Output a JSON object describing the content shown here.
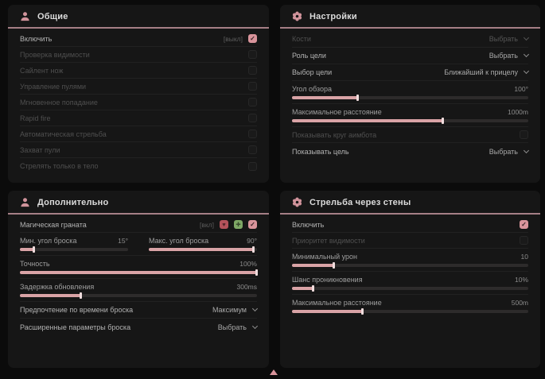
{
  "colors": {
    "accent": "#d9949b",
    "panel_bg": "#161616",
    "page_bg": "#0b0b0b",
    "header_line": "#a57f86",
    "slider_fill": "#d9a3a6"
  },
  "icons": {
    "check": "✓",
    "heart": "♥",
    "cross": "✚"
  },
  "general": {
    "title": "Общие",
    "rows": [
      {
        "label": "Включить",
        "tag": "[выкл]",
        "checked": true
      },
      {
        "label": "Проверка видимости"
      },
      {
        "label": "Сайлент нож"
      },
      {
        "label": "Управление пулями"
      },
      {
        "label": "Мгновенное попадание"
      },
      {
        "label": "Rapid fire"
      },
      {
        "label": "Автоматическая стрельба"
      },
      {
        "label": "Захват пули"
      },
      {
        "label": "Стрелять только в тело"
      }
    ]
  },
  "settings": {
    "title": "Настройки",
    "rows": [
      {
        "label": "Кости",
        "value": "Выбрать",
        "type": "dropdown",
        "dim": true
      },
      {
        "label": "Роль цели",
        "value": "Выбрать",
        "type": "dropdown"
      },
      {
        "label": "Выбор цели",
        "value": "Ближайший к прицелу",
        "type": "dropdown"
      },
      {
        "label": "Угол обзора",
        "value": "100°",
        "type": "slider",
        "fill": 28
      },
      {
        "label": "Максимальное расстояние",
        "value": "1000m",
        "type": "slider",
        "fill": 64
      },
      {
        "label": "Показывать круг аимбота",
        "type": "checkbox",
        "dim": true
      },
      {
        "label": "Показывать цель",
        "value": "Выбрать",
        "type": "dropdown"
      }
    ]
  },
  "additional": {
    "title": "Дополнительно",
    "rows": [
      {
        "label": "Магическая граната",
        "tag": "[вкл]",
        "checked": true
      },
      {
        "label": "Мин. угол броска",
        "value": "15°",
        "type": "slider",
        "fill": 13
      },
      {
        "label": "Макс. угол броска",
        "value": "90°",
        "type": "slider",
        "fill": 97
      },
      {
        "label": "Точность",
        "value": "100%",
        "type": "slider",
        "fill": 100
      },
      {
        "label": "Задержка обновления",
        "value": "300ms",
        "type": "slider",
        "fill": 26
      },
      {
        "label": "Предпочтение по времени броска",
        "value": "Максимум",
        "type": "dropdown"
      },
      {
        "label": "Расширенные параметры броска",
        "value": "Выбрать",
        "type": "dropdown"
      }
    ]
  },
  "wallbang": {
    "title": "Стрельба через стены",
    "rows": [
      {
        "label": "Включить",
        "checked": true
      },
      {
        "label": "Приоритет видимости",
        "dim": true
      },
      {
        "label": "Минимальный урон",
        "value": "10",
        "type": "slider",
        "fill": 18
      },
      {
        "label": "Шанс проникновения",
        "value": "10%",
        "type": "slider",
        "fill": 9
      },
      {
        "label": "Максимальное расстояние",
        "value": "500m",
        "type": "slider",
        "fill": 30
      }
    ]
  }
}
